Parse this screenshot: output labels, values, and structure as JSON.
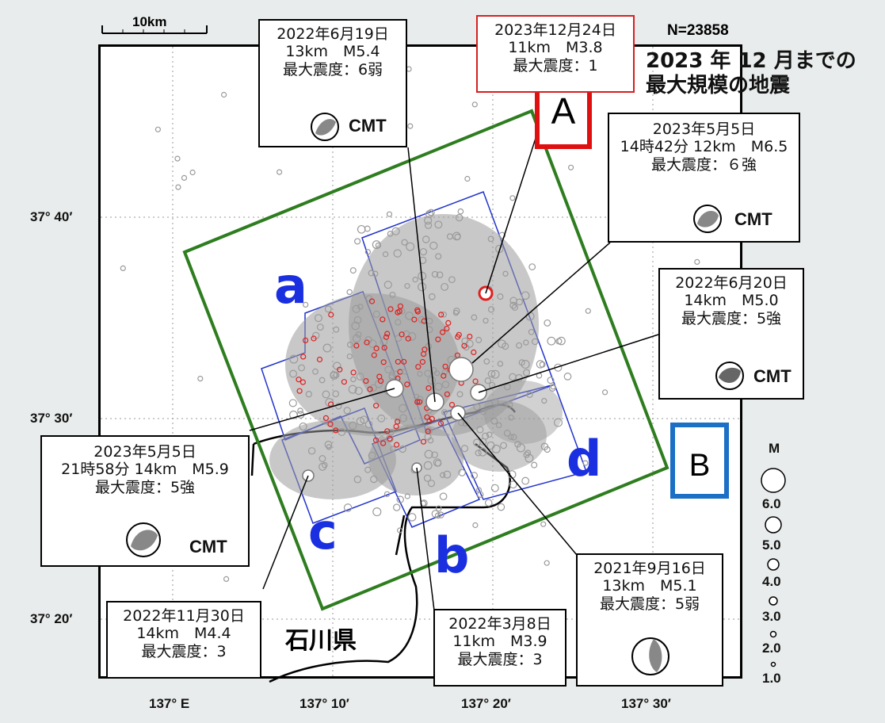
{
  "scale_bar": {
    "label": "10km"
  },
  "count_label": "N=23858",
  "title": {
    "line1": "2023 年 12 月までの",
    "line2": "最大規模の地震"
  },
  "prefecture": "石川県",
  "regions": {
    "a": "a",
    "b": "b",
    "c": "c",
    "d": "d"
  },
  "markers": {
    "A": "A",
    "B": "B"
  },
  "lat_ticks": [
    "37° 40′",
    "37° 30′",
    "37° 20′"
  ],
  "lon_ticks": [
    "137° E",
    "137° 10′",
    "137° 20′",
    "137° 30′"
  ],
  "magnitude_legend": {
    "title": "M",
    "labels": [
      "6.0",
      "5.0",
      "4.0",
      "3.0",
      "2.0",
      "1.0"
    ]
  },
  "cmt_label": "CMT",
  "events": {
    "e20220619": {
      "date": "2022年6月19日",
      "detail": "13km　M5.4",
      "intensity": "最大震度：6弱",
      "cmt": "CMT"
    },
    "e20231224": {
      "date": "2023年12月24日",
      "detail": "11km　M3.8",
      "intensity": "最大震度：1"
    },
    "e20230505a": {
      "date": "2023年5月5日",
      "detail": "14時42分 12km　M6.5",
      "intensity": "最大震度：６強",
      "cmt": "CMT"
    },
    "e20220620": {
      "date": "2022年6月20日",
      "detail": "14km　M5.0",
      "intensity": "最大震度：5強",
      "cmt": "CMT"
    },
    "e20230505b": {
      "date": "2023年5月5日",
      "detail": "21時58分 14km　M5.9",
      "intensity": "最大震度：5強",
      "cmt": "CMT"
    },
    "e20221130": {
      "date": "2022年11月30日",
      "detail": "14km　M4.4",
      "intensity": "最大震度：3"
    },
    "e20220308": {
      "date": "2022年3月8日",
      "detail": "11km　M3.9",
      "intensity": "最大震度：3"
    },
    "e20210916": {
      "date": "2021年9月16日",
      "detail": "13km　M5.1",
      "intensity": "最大震度：5弱"
    }
  },
  "colors": {
    "study_area": "#2e7d1f",
    "subregion": "#2233cc",
    "region_label": "#1a2fe0",
    "marker_A": "#e01010",
    "marker_B": "#1b6fc4",
    "event_gray": "#9a9a9a",
    "event_red": "#e02020"
  }
}
